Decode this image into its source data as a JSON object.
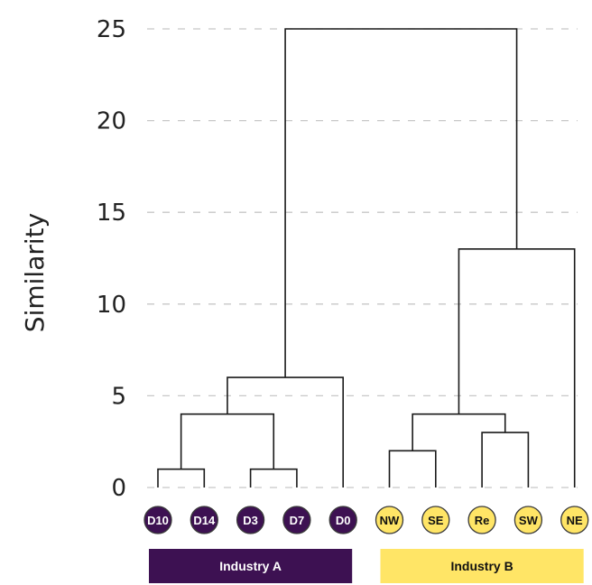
{
  "chart_data": {
    "type": "dendrogram",
    "ylabel": "Similarity",
    "ylim": [
      0,
      25
    ],
    "yticks": [
      0,
      5,
      10,
      15,
      20,
      25
    ],
    "grid": "horizontal dashed",
    "leaves": [
      {
        "label": "D10",
        "group": 0
      },
      {
        "label": "D14",
        "group": 0
      },
      {
        "label": "D3",
        "group": 0
      },
      {
        "label": "D7",
        "group": 0
      },
      {
        "label": "D0",
        "group": 0
      },
      {
        "label": "NW",
        "group": 1
      },
      {
        "label": "SE",
        "group": 1
      },
      {
        "label": "Re",
        "group": 1
      },
      {
        "label": "SW",
        "group": 1
      },
      {
        "label": "NE",
        "group": 1
      }
    ],
    "merges": [
      {
        "left": "D10",
        "right": "D14",
        "height": 1
      },
      {
        "left": "D3",
        "right": "D7",
        "height": 1
      },
      {
        "left": "D10+D14",
        "right": "D3+D7",
        "height": 4
      },
      {
        "left": "D10+D14+D3+D7",
        "right": "D0",
        "height": 6
      },
      {
        "left": "NW",
        "right": "SE",
        "height": 2
      },
      {
        "left": "Re",
        "right": "SW",
        "height": 3
      },
      {
        "left": "NW+SE",
        "right": "Re+SW",
        "height": 4
      },
      {
        "left": "NW+SE+Re+SW",
        "right": "NE",
        "height": 13
      },
      {
        "left": "Industry A",
        "right": "Industry B",
        "height": 25
      }
    ],
    "groups": [
      {
        "label": "Industry A",
        "color": "#3d1152",
        "text_color": "#ffffff"
      },
      {
        "label": "Industry B",
        "color": "#ffe566",
        "text_color": "#111111"
      }
    ]
  }
}
